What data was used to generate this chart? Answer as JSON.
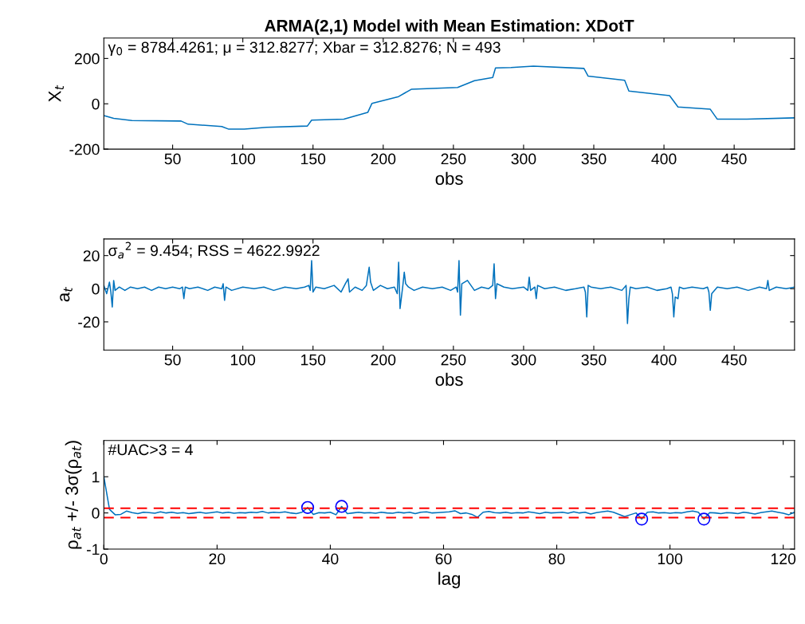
{
  "chart_data": [
    {
      "type": "line",
      "title": "ARMA(2,1) Model with Mean Estimation: XDotT",
      "xlabel": "obs",
      "ylabel": "X$_{t}$",
      "annotations": [
        "γ$_{0}$ = 8784.4261; μ = 312.8277; Xbar = 312.8276; N = 493"
      ],
      "xlim": [
        1,
        493
      ],
      "xticks": [
        50,
        100,
        150,
        200,
        250,
        300,
        350,
        400,
        450
      ],
      "ylim": [
        -200,
        290
      ],
      "yticks": [
        -200,
        0,
        200
      ],
      "grid": false,
      "legend": false,
      "series": [
        {
          "color": "#0072bd",
          "x": [
            1,
            8,
            21,
            56,
            61,
            85,
            90,
            101,
            117,
            146,
            149,
            172,
            189,
            192,
            211,
            220,
            253,
            265,
            278,
            280,
            291,
            307,
            343,
            346,
            372,
            375,
            404,
            410,
            433,
            438,
            459,
            493
          ],
          "values": [
            -52,
            -64,
            -74,
            -76,
            -90,
            -100,
            -112,
            -112,
            -104,
            -98,
            -72,
            -68,
            -38,
            2,
            32,
            64,
            72,
            102,
            116,
            158,
            160,
            166,
            156,
            122,
            104,
            56,
            36,
            -14,
            -24,
            -68,
            -68,
            -62
          ]
        }
      ]
    },
    {
      "type": "line",
      "xlabel": "obs",
      "ylabel": "a$_{t}$",
      "annotations": [
        "σ$_{a}$$^{2}$ = 9.454; RSS = 4622.9922"
      ],
      "xlim": [
        1,
        493
      ],
      "xticks": [
        50,
        100,
        150,
        200,
        250,
        300,
        350,
        400,
        450
      ],
      "ylim": [
        -37,
        30
      ],
      "yticks": [
        -20,
        0,
        20
      ],
      "grid": false,
      "legend": false,
      "series": [
        {
          "color": "#0072bd",
          "x": [
            1,
            3,
            5,
            6,
            7,
            8,
            9,
            12,
            16,
            20,
            25,
            30,
            35,
            40,
            45,
            50,
            55,
            57,
            58,
            59,
            62,
            68,
            75,
            80,
            85,
            86,
            87,
            88,
            92,
            100,
            108,
            115,
            122,
            130,
            138,
            144,
            147,
            148,
            149,
            150,
            152,
            158,
            165,
            170,
            173,
            175,
            176,
            180,
            185,
            188,
            190,
            191,
            193,
            198,
            203,
            208,
            210,
            211,
            212,
            214,
            215,
            216,
            218,
            222,
            228,
            235,
            242,
            248,
            252,
            253,
            254,
            255,
            256,
            260,
            265,
            270,
            275,
            278,
            279,
            280,
            281,
            286,
            292,
            300,
            303,
            304,
            305,
            308,
            309,
            310,
            315,
            322,
            330,
            337,
            343,
            344,
            345,
            346,
            348,
            355,
            362,
            370,
            373,
            374,
            375,
            376,
            380,
            388,
            395,
            402,
            405,
            406,
            407,
            408,
            410,
            411,
            414,
            420,
            428,
            431,
            432,
            433,
            434,
            438,
            445,
            452,
            460,
            468,
            473,
            474,
            475,
            480,
            487,
            493
          ],
          "values": [
            2,
            -3,
            4,
            -2,
            -11,
            5,
            -1,
            1,
            -1,
            1,
            0,
            1,
            -1,
            1,
            0,
            1,
            0,
            1,
            -6,
            1,
            0,
            1,
            -1,
            1,
            0,
            3,
            -7,
            1,
            -1,
            1,
            0,
            1,
            -1,
            1,
            0,
            1,
            2,
            -1,
            17,
            -2,
            1,
            0,
            2,
            -2,
            3,
            6,
            -2,
            1,
            -1,
            2,
            13,
            4,
            -1,
            2,
            0,
            1,
            -3,
            16,
            -12,
            2,
            10,
            3,
            1,
            -1,
            1,
            0,
            1,
            -1,
            1,
            -2,
            17,
            -16,
            3,
            5,
            -1,
            1,
            0,
            2,
            15,
            -6,
            3,
            1,
            0,
            1,
            -1,
            7,
            -1,
            1,
            -6,
            2,
            0,
            1,
            -1,
            0,
            1,
            -2,
            -17,
            2,
            1,
            0,
            1,
            -1,
            2,
            -21,
            -6,
            1,
            0,
            1,
            -1,
            0,
            1,
            -3,
            -17,
            -5,
            -6,
            1,
            0,
            1,
            0,
            1,
            -2,
            -13,
            -3,
            1,
            0,
            1,
            -1,
            1,
            0,
            5,
            -1,
            1,
            0,
            1
          ]
        }
      ]
    },
    {
      "type": "line",
      "xlabel": "lag",
      "ylabel": "ρ$_{at}$ +/- 3σ(ρ$_{at}$)",
      "annotations": [
        "#UAC>3 = 4"
      ],
      "xlim": [
        0,
        122
      ],
      "xticks": [
        0,
        20,
        40,
        60,
        80,
        100,
        120
      ],
      "ylim": [
        -1,
        2
      ],
      "yticks": [
        -1,
        0,
        1
      ],
      "grid": false,
      "legend": false,
      "ref_lines": [
        {
          "axis": "y",
          "value": 0.13,
          "color": "#ff0000",
          "line_style": "dashed"
        },
        {
          "axis": "y",
          "value": -0.13,
          "color": "#ff0000",
          "line_style": "dashed"
        }
      ],
      "series": [
        {
          "color": "#0072bd",
          "x": [
            0,
            1,
            2,
            3,
            4,
            5,
            6,
            7,
            8,
            9,
            10,
            11,
            12,
            13,
            14,
            15,
            16,
            17,
            18,
            19,
            20,
            21,
            22,
            23,
            24,
            25,
            26,
            27,
            28,
            29,
            30,
            31,
            32,
            33,
            34,
            35,
            36,
            37,
            38,
            39,
            40,
            41,
            42,
            43,
            44,
            45,
            46,
            47,
            48,
            49,
            50,
            51,
            52,
            53,
            54,
            55,
            56,
            57,
            58,
            59,
            60,
            61,
            62,
            63,
            64,
            65,
            66,
            67,
            68,
            69,
            70,
            71,
            72,
            73,
            74,
            75,
            76,
            77,
            78,
            79,
            80,
            81,
            82,
            83,
            84,
            85,
            86,
            87,
            88,
            89,
            90,
            91,
            92,
            93,
            94,
            95,
            96,
            97,
            98,
            99,
            100,
            101,
            102,
            103,
            104,
            105,
            106,
            107,
            108,
            109,
            110,
            111,
            112,
            113,
            114,
            115,
            116,
            117,
            118,
            119,
            120,
            121,
            122
          ],
          "values": [
            1,
            0.1,
            -0.05,
            -0.04,
            0.05,
            0.01,
            -0.02,
            0.02,
            0.01,
            -0.01,
            0.03,
            0,
            0.02,
            -0.01,
            0.01,
            -0.02,
            0,
            0.02,
            -0.01,
            0.01,
            0.03,
            0,
            0.02,
            -0.01,
            0.01,
            0,
            0.02,
            0.01,
            0.04,
            0,
            0.02,
            0.01,
            0.03,
            0,
            -0.02,
            0.02,
            0.15,
            -0.04,
            0.01,
            0,
            0.02,
            -0.05,
            0.18,
            -0.02,
            0,
            0.02,
            0,
            0.01,
            -0.01,
            0.02,
            0,
            -0.01,
            0.02,
            0,
            0.02,
            -0.02,
            0.02,
            0.03,
            0,
            0.01,
            0.02,
            0.03,
            0.06,
            -0.02,
            0,
            -0.04,
            -0.12,
            0.02,
            0.04,
            0.01,
            0,
            0.02,
            -0.01,
            0.01,
            0,
            0.03,
            0.01,
            -0.02,
            0.02,
            0,
            0.01,
            0.02,
            -0.01,
            0.03,
            0,
            0.02,
            -0.03,
            0.01,
            0.03,
            0.05,
            0.02,
            -0.04,
            -0.1,
            -0.05,
            0,
            -0.17,
            0.02,
            0.03,
            0,
            0.01,
            -0.01,
            0.01,
            0,
            0.03,
            0.05,
            0.02,
            -0.17,
            0.01,
            0,
            -0.02,
            0.01,
            0,
            -0.02,
            0.02,
            0,
            -0.03,
            0.01,
            0.03,
            0.05,
            0.02,
            -0.01,
            -0.05,
            0.02
          ]
        },
        {
          "type": "scatter",
          "color": "#0000ff",
          "marker": "circle",
          "x": [
            36,
            42,
            95,
            106
          ],
          "values": [
            0.15,
            0.18,
            -0.17,
            -0.17
          ]
        }
      ]
    }
  ]
}
